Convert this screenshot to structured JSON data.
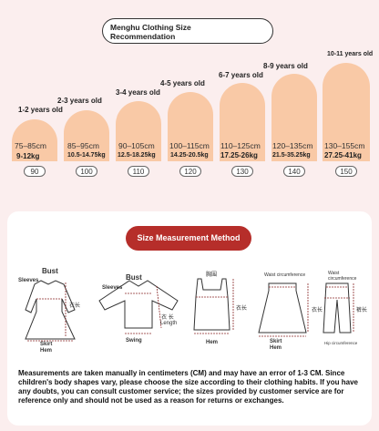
{
  "header": {
    "title_line1": "Menghu Clothing Size",
    "title_line2": "Recommendation"
  },
  "sizes": [
    {
      "age": "1-2 years old",
      "cm": "75–85cm",
      "kg": "9-12kg",
      "size": "90"
    },
    {
      "age": "2-3 years old",
      "cm": "85–95cm",
      "kg": "10.5-14.75kg",
      "size": "100"
    },
    {
      "age": "3-4 years old",
      "cm": "90–105cm",
      "kg": "12.5-18.25kg",
      "size": "110"
    },
    {
      "age": "4-5 years old",
      "cm": "100–115cm",
      "kg": "14.25-20.5kg",
      "size": "120"
    },
    {
      "age": "6-7 years old",
      "cm": "110–125cm",
      "kg": "17.25-26kg",
      "size": "130"
    },
    {
      "age": "8-9 years old",
      "cm": "120–135cm",
      "kg": "21.5-35.25kg",
      "size": "140"
    },
    {
      "age": "10-11 years old",
      "cm": "130–155cm",
      "kg": "27.25-41kg",
      "size": "150"
    }
  ],
  "method": {
    "title": "Size Measurement Method",
    "labels": {
      "bust1": "Bust",
      "sleeves1": "Sleeves",
      "length1": "衣长",
      "skirt1": "Skirt",
      "hem1": "Hem",
      "bust2": "Bust",
      "sleeves2": "Sleeves",
      "length2a": "衣",
      "length2b": "长",
      "length2c": "Length",
      "swing": "Swing",
      "bust3": "胸围",
      "length3": "衣长",
      "hem3": "Hem",
      "waist4": "Waist circumference",
      "length4": "衣长",
      "skirt4": "Skirt",
      "hem4": "Hem",
      "waist5a": "Waist",
      "waist5b": "circumference",
      "length5": "裤长",
      "hip5": "Hip circumference"
    },
    "note": "Measurements are taken manually in centimeters (CM) and may have an error of 1-3 CM. Since children's body shapes vary, please choose the size according to their clothing habits. If you have any doubts, you can consult customer service; the sizes provided by customer service are for reference only and should not be used as a reason for returns or exchanges."
  }
}
